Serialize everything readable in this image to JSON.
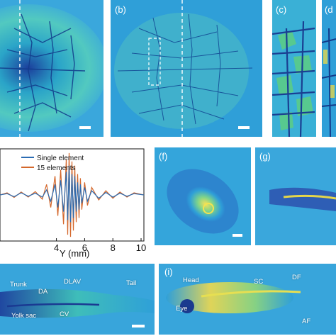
{
  "panels": {
    "a": {
      "label": ""
    },
    "b": {
      "label": "(b)"
    },
    "c": {
      "label": "(c)"
    },
    "d": {
      "label": "(d"
    },
    "f": {
      "label": "(f)"
    },
    "g": {
      "label": "(g)"
    },
    "i": {
      "label": "(i)"
    }
  },
  "zebrafish_h": {
    "labels": [
      "Trunk",
      "DA",
      "DLAV",
      "Tail",
      "Yolk sac",
      "CV"
    ]
  },
  "zebrafish_i": {
    "labels": [
      "Head",
      "SC",
      "DF",
      "Eye",
      "AF"
    ]
  },
  "colors": {
    "field": "#2e9fd8",
    "single_element": "#2b6cb3",
    "fifteen_elements": "#d4672b"
  },
  "chart_data": {
    "type": "line",
    "xlabel": "Y (mm)",
    "ylabel": "",
    "xlim": [
      0,
      10.2
    ],
    "ylim": [
      -1.1,
      1.1
    ],
    "xticks": [
      "4",
      "6",
      "8",
      "10"
    ],
    "xtick_values": [
      4,
      6,
      8,
      10
    ],
    "legend_placement": "top-left",
    "series": [
      {
        "name": "Single element",
        "color": "#2b6cb3",
        "x": [
          0,
          0.5,
          1,
          1.5,
          2,
          2.5,
          3,
          3.3,
          3.6,
          3.9,
          4.1,
          4.3,
          4.5,
          4.7,
          4.8,
          4.9,
          5.0,
          5.1,
          5.2,
          5.3,
          5.4,
          5.5,
          5.6,
          5.7,
          5.8,
          6.0,
          6.2,
          6.5,
          7,
          7.5,
          8,
          8.5,
          9,
          9.5,
          10.2
        ],
        "y": [
          0,
          0.03,
          -0.04,
          0.05,
          -0.03,
          0.04,
          -0.05,
          0.12,
          -0.15,
          0.25,
          -0.3,
          0.35,
          -0.4,
          0.55,
          -0.6,
          0.7,
          -0.65,
          0.5,
          -0.55,
          0.45,
          -0.4,
          0.3,
          -0.35,
          0.25,
          -0.2,
          0.18,
          -0.15,
          0.1,
          -0.08,
          0.06,
          -0.05,
          0.04,
          -0.03,
          0.03,
          0
        ]
      },
      {
        "name": "15 elements",
        "color": "#d4672b",
        "x": [
          0,
          0.5,
          1,
          1.5,
          2,
          2.5,
          3,
          3.3,
          3.6,
          3.9,
          4.1,
          4.3,
          4.5,
          4.7,
          4.8,
          4.9,
          5.0,
          5.1,
          5.2,
          5.3,
          5.4,
          5.5,
          5.6,
          5.7,
          5.8,
          6.0,
          6.2,
          6.5,
          7,
          7.5,
          8,
          8.5,
          9,
          9.5,
          10.2
        ],
        "y": [
          0,
          0.05,
          -0.06,
          0.07,
          -0.05,
          0.08,
          -0.1,
          0.25,
          -0.3,
          0.45,
          -0.5,
          0.6,
          -0.7,
          0.85,
          -0.95,
          1.0,
          -1.0,
          0.8,
          -0.85,
          0.7,
          -0.65,
          0.5,
          -0.55,
          0.4,
          -0.35,
          0.3,
          -0.25,
          0.18,
          -0.12,
          0.1,
          -0.08,
          0.07,
          -0.05,
          0.05,
          0
        ]
      }
    ]
  }
}
